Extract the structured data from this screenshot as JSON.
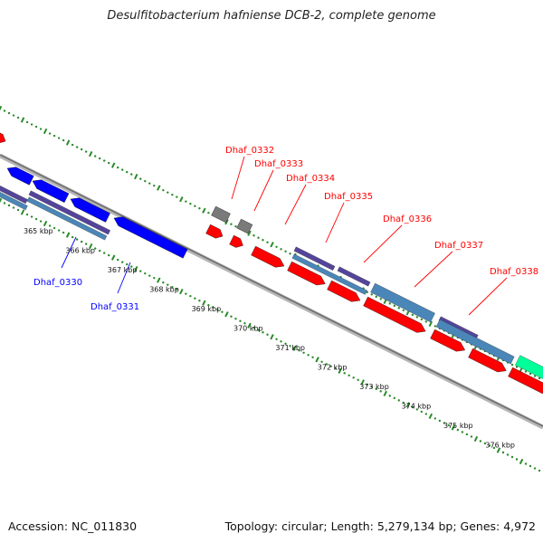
{
  "title": "Desulfitobacterium hafniense DCB-2, complete genome",
  "footer": {
    "accession": "Accession: NC_011830",
    "info": "Topology: circular; Length: 5,279,134 bp; Genes: 4,972"
  },
  "colors": {
    "forward_gene": "#ff0000",
    "reverse_gene": "#0000ff",
    "other_gene": "#7a7a7a",
    "cds_feature": "#4a86b8",
    "domain_feature": "#54449a",
    "rna_feature": "#00ff99",
    "backbone": "#888888",
    "ticks": "#2a8a2a"
  },
  "ruler": {
    "unit": "kbp",
    "labels": [
      "365 kbp",
      "366 kbp",
      "367 kbp",
      "368 kbp",
      "369 kbp",
      "370 kbp",
      "371 kbp",
      "372 kbp",
      "373 kbp",
      "374 kbp",
      "375 kbp",
      "376 kbp"
    ]
  },
  "gene_labels": [
    {
      "text": "Dhaf_0330",
      "strand": "reverse"
    },
    {
      "text": "Dhaf_0331",
      "strand": "reverse"
    },
    {
      "text": "Dhaf_0332",
      "strand": "forward"
    },
    {
      "text": "Dhaf_0333",
      "strand": "forward"
    },
    {
      "text": "Dhaf_0334",
      "strand": "forward"
    },
    {
      "text": "Dhaf_0335",
      "strand": "forward"
    },
    {
      "text": "Dhaf_0336",
      "strand": "forward"
    },
    {
      "text": "Dhaf_0337",
      "strand": "forward"
    },
    {
      "text": "Dhaf_0338",
      "strand": "forward"
    }
  ]
}
